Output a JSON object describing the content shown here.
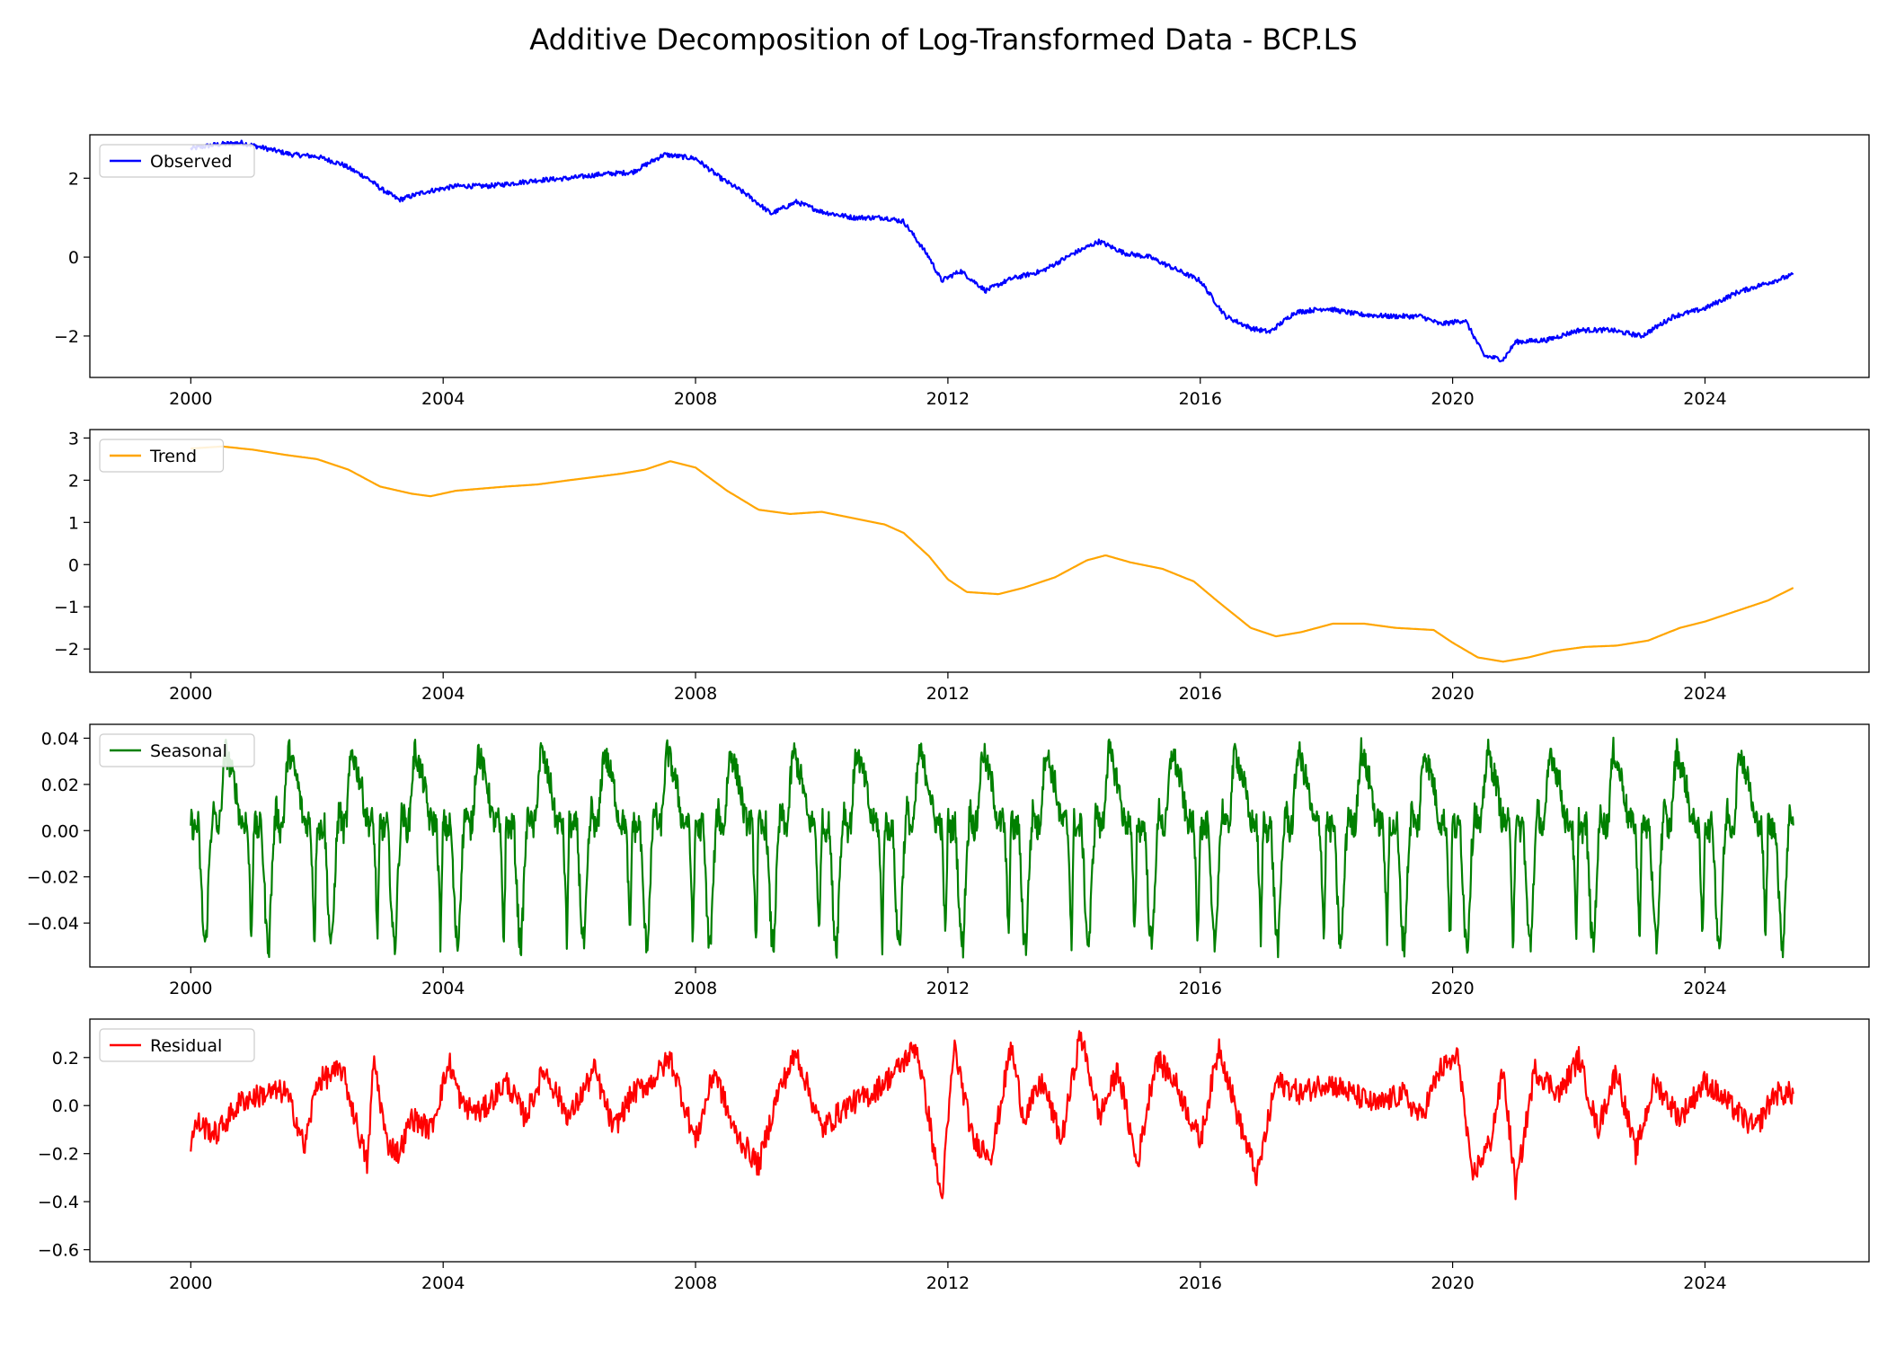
{
  "title": "Additive Decomposition of Log-Transformed Data - BCP.LS",
  "chart_data": [
    {
      "type": "line",
      "x_unit": "year",
      "xlim": [
        1998.4,
        2026.6
      ],
      "x_ticks": [
        2000,
        2004,
        2008,
        2012,
        2016,
        2020,
        2024
      ],
      "x_tick_labels": [
        "2000",
        "2004",
        "2008",
        "2012",
        "2016",
        "2020",
        "2024"
      ],
      "ylim": [
        -3.05,
        3.1
      ],
      "y_ticks": [
        -2,
        0,
        2
      ],
      "y_tick_labels": [
        "−2",
        "0",
        "2"
      ],
      "legend_position": "top-left",
      "grid": false,
      "series": [
        {
          "name": "Observed",
          "color": "#0000ff",
          "noise": 0.06,
          "x": [
            2000.0,
            2000.4,
            2000.8,
            2001.2,
            2001.6,
            2002.0,
            2002.4,
            2002.8,
            2003.0,
            2003.3,
            2003.7,
            2004.2,
            2004.7,
            2005.0,
            2005.5,
            2006.0,
            2006.5,
            2007.0,
            2007.5,
            2008.0,
            2008.4,
            2008.8,
            2009.2,
            2009.6,
            2010.0,
            2010.5,
            2011.0,
            2011.3,
            2011.7,
            2011.9,
            2012.2,
            2012.6,
            2013.0,
            2013.5,
            2014.0,
            2014.4,
            2014.8,
            2015.2,
            2015.6,
            2016.0,
            2016.4,
            2016.8,
            2017.1,
            2017.5,
            2018.0,
            2018.5,
            2019.0,
            2019.5,
            2019.8,
            2020.2,
            2020.5,
            2020.8,
            2021.0,
            2021.5,
            2022.0,
            2022.5,
            2023.0,
            2023.5,
            2024.0,
            2024.5,
            2025.0,
            2025.4
          ],
          "y": [
            2.75,
            2.85,
            2.9,
            2.75,
            2.6,
            2.55,
            2.35,
            2.0,
            1.75,
            1.45,
            1.65,
            1.8,
            1.8,
            1.85,
            1.95,
            2.0,
            2.1,
            2.15,
            2.6,
            2.5,
            2.0,
            1.6,
            1.1,
            1.4,
            1.15,
            1.0,
            1.0,
            0.9,
            0.0,
            -0.6,
            -0.35,
            -0.85,
            -0.55,
            -0.35,
            0.1,
            0.4,
            0.1,
            0.0,
            -0.3,
            -0.6,
            -1.5,
            -1.8,
            -1.9,
            -1.4,
            -1.3,
            -1.45,
            -1.5,
            -1.5,
            -1.7,
            -1.6,
            -2.5,
            -2.6,
            -2.15,
            -2.1,
            -1.85,
            -1.85,
            -2.0,
            -1.5,
            -1.3,
            -0.9,
            -0.65,
            -0.45
          ]
        }
      ]
    },
    {
      "type": "line",
      "x_unit": "year",
      "xlim": [
        1998.4,
        2026.6
      ],
      "x_ticks": [
        2000,
        2004,
        2008,
        2012,
        2016,
        2020,
        2024
      ],
      "x_tick_labels": [
        "2000",
        "2004",
        "2008",
        "2012",
        "2016",
        "2020",
        "2024"
      ],
      "ylim": [
        -2.55,
        3.2
      ],
      "y_ticks": [
        -2,
        -1,
        0,
        1,
        2,
        3
      ],
      "y_tick_labels": [
        "−2",
        "−1",
        "0",
        "1",
        "2",
        "3"
      ],
      "legend_position": "top-left",
      "grid": false,
      "series": [
        {
          "name": "Trend",
          "color": "#ffa500",
          "x": [
            2000.0,
            2000.5,
            2001.0,
            2001.5,
            2002.0,
            2002.5,
            2003.0,
            2003.5,
            2003.8,
            2004.2,
            2005.0,
            2005.5,
            2006.0,
            2006.8,
            2007.2,
            2007.6,
            2008.0,
            2008.5,
            2009.0,
            2009.5,
            2010.0,
            2010.5,
            2011.0,
            2011.3,
            2011.7,
            2012.0,
            2012.3,
            2012.8,
            2013.2,
            2013.7,
            2014.2,
            2014.5,
            2014.9,
            2015.4,
            2015.9,
            2016.3,
            2016.8,
            2017.2,
            2017.6,
            2018.1,
            2018.6,
            2019.1,
            2019.7,
            2020.0,
            2020.4,
            2020.8,
            2021.2,
            2021.6,
            2022.1,
            2022.6,
            2023.1,
            2023.6,
            2024.0,
            2024.5,
            2025.0,
            2025.4
          ],
          "y": [
            2.75,
            2.8,
            2.72,
            2.6,
            2.5,
            2.25,
            1.85,
            1.68,
            1.62,
            1.75,
            1.85,
            1.9,
            2.0,
            2.15,
            2.25,
            2.45,
            2.3,
            1.75,
            1.3,
            1.2,
            1.25,
            1.1,
            0.95,
            0.75,
            0.2,
            -0.35,
            -0.65,
            -0.7,
            -0.55,
            -0.3,
            0.1,
            0.22,
            0.05,
            -0.1,
            -0.4,
            -0.9,
            -1.5,
            -1.7,
            -1.6,
            -1.4,
            -1.4,
            -1.5,
            -1.55,
            -1.85,
            -2.2,
            -2.3,
            -2.2,
            -2.05,
            -1.95,
            -1.92,
            -1.8,
            -1.5,
            -1.35,
            -1.1,
            -0.85,
            -0.55
          ]
        }
      ]
    },
    {
      "type": "line",
      "x_unit": "year",
      "xlim": [
        1998.4,
        2026.6
      ],
      "x_ticks": [
        2000,
        2004,
        2008,
        2012,
        2016,
        2020,
        2024
      ],
      "x_tick_labels": [
        "2000",
        "2004",
        "2008",
        "2012",
        "2016",
        "2020",
        "2024"
      ],
      "ylim": [
        -0.059,
        0.046
      ],
      "y_ticks": [
        -0.04,
        -0.02,
        0.0,
        0.02,
        0.04
      ],
      "y_tick_labels": [
        "−0.04",
        "−0.02",
        "0.00",
        "0.02",
        "0.04"
      ],
      "legend_position": "top-left",
      "grid": false,
      "series": [
        {
          "name": "Seasonal",
          "color": "#008000",
          "period_years": 1.0,
          "start": 2000.0,
          "end": 2025.4,
          "noise": 0.006,
          "cycle_phase": [
            0.0,
            0.05,
            0.12,
            0.2,
            0.24,
            0.3,
            0.35,
            0.42,
            0.47,
            0.5,
            0.55,
            0.6,
            0.7,
            0.78,
            0.84,
            0.87,
            0.9,
            0.93,
            0.96,
            1.0
          ],
          "cycle_values": [
            0.005,
            0.0,
            0.003,
            -0.045,
            -0.05,
            -0.01,
            0.01,
            0.0,
            0.005,
            0.02,
            0.035,
            0.03,
            0.02,
            0.005,
            0.003,
            0.005,
            0.0,
            -0.02,
            -0.05,
            0.005
          ]
        }
      ]
    },
    {
      "type": "line",
      "x_unit": "year",
      "xlim": [
        1998.4,
        2026.6
      ],
      "x_ticks": [
        2000,
        2004,
        2008,
        2012,
        2016,
        2020,
        2024
      ],
      "x_tick_labels": [
        "2000",
        "2004",
        "2008",
        "2012",
        "2016",
        "2020",
        "2024"
      ],
      "ylim": [
        -0.65,
        0.36
      ],
      "y_ticks": [
        -0.6,
        -0.4,
        -0.2,
        0.0,
        0.2
      ],
      "y_tick_labels": [
        "−0.6",
        "−0.4",
        "−0.2",
        "0.0",
        "0.2"
      ],
      "legend_position": "top-left",
      "grid": false,
      "series": [
        {
          "name": "Residual",
          "color": "#ff0000",
          "noise": 0.05,
          "x": [
            2000.0,
            2000.1,
            2000.4,
            2000.8,
            2001.2,
            2001.5,
            2001.7,
            2001.8,
            2002.0,
            2002.4,
            2002.6,
            2002.8,
            2002.9,
            2003.1,
            2003.3,
            2003.5,
            2003.8,
            2004.1,
            2004.3,
            2004.6,
            2005.0,
            2005.3,
            2005.6,
            2006.0,
            2006.4,
            2006.7,
            2007.0,
            2007.3,
            2007.6,
            2008.0,
            2008.3,
            2008.6,
            2009.0,
            2009.3,
            2009.6,
            2010.0,
            2010.4,
            2010.8,
            2011.2,
            2011.5,
            2011.7,
            2011.9,
            2012.1,
            2012.4,
            2012.7,
            2013.0,
            2013.2,
            2013.5,
            2013.8,
            2014.1,
            2014.4,
            2014.7,
            2015.0,
            2015.3,
            2015.6,
            2016.0,
            2016.3,
            2016.6,
            2016.9,
            2017.2,
            2017.6,
            2018.0,
            2018.4,
            2018.8,
            2019.2,
            2019.5,
            2019.8,
            2020.1,
            2020.3,
            2020.6,
            2020.8,
            2021.0,
            2021.3,
            2021.7,
            2022.0,
            2022.3,
            2022.6,
            2022.9,
            2023.2,
            2023.6,
            2024.0,
            2024.4,
            2024.8,
            2025.1,
            2025.4
          ],
          "y": [
            -0.15,
            -0.07,
            -0.12,
            0.02,
            0.05,
            0.06,
            -0.08,
            -0.18,
            0.1,
            0.15,
            -0.05,
            -0.25,
            0.2,
            -0.15,
            -0.2,
            -0.05,
            -0.1,
            0.18,
            0.0,
            -0.03,
            0.1,
            -0.05,
            0.15,
            -0.05,
            0.15,
            -0.1,
            0.05,
            0.1,
            0.2,
            -0.15,
            0.15,
            -0.1,
            -0.25,
            0.05,
            0.22,
            -0.1,
            0.0,
            0.05,
            0.15,
            0.25,
            -0.05,
            -0.4,
            0.25,
            -0.15,
            -0.2,
            0.25,
            -0.05,
            0.1,
            -0.15,
            0.3,
            -0.05,
            0.15,
            -0.25,
            0.2,
            0.1,
            -0.15,
            0.25,
            -0.05,
            -0.3,
            0.1,
            0.05,
            0.1,
            0.05,
            0.0,
            0.05,
            -0.05,
            0.15,
            0.2,
            -0.3,
            -0.15,
            0.15,
            -0.35,
            0.15,
            0.05,
            0.2,
            -0.1,
            0.15,
            -0.2,
            0.1,
            -0.05,
            0.1,
            0.0,
            -0.1,
            0.05,
            0.05
          ]
        }
      ]
    }
  ]
}
